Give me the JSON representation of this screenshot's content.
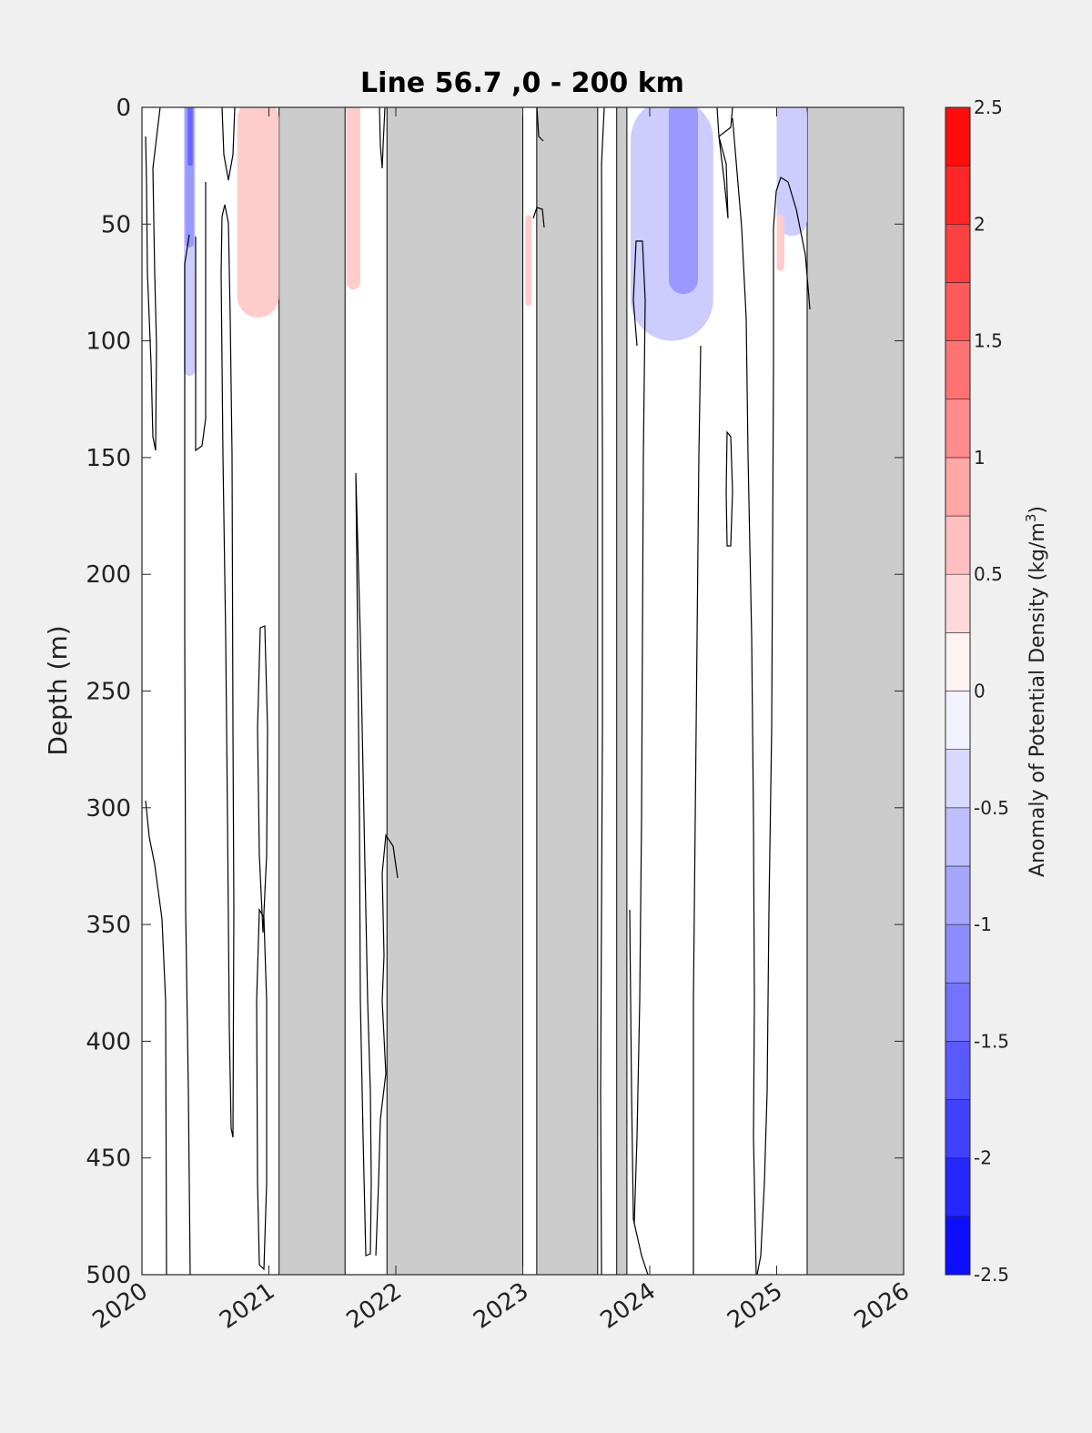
{
  "chart_data": {
    "type": "heatmap",
    "title": "Line 56.7 ,0 - 200 km",
    "ylabel": "Depth (m)",
    "xlabel": "",
    "xlim": [
      2020,
      2026
    ],
    "ylim": [
      0,
      500
    ],
    "y_reversed": true,
    "x_ticks": [
      "2020",
      "2021",
      "2022",
      "2023",
      "2024",
      "2025",
      "2026"
    ],
    "y_ticks": [
      "0",
      "50",
      "100",
      "150",
      "200",
      "250",
      "300",
      "350",
      "400",
      "450",
      "500"
    ],
    "colorbar": {
      "label_main": "Anomaly of Potential Density (kg/m",
      "label_sup": "3",
      "label_end": ")",
      "range": [
        -2.5,
        2.5
      ],
      "step": 0.25,
      "ticks": [
        "2.5",
        "2",
        "1.5",
        "1",
        "0.5",
        "0",
        "-0.5",
        "-1",
        "-1.5",
        "-2",
        "-2.5"
      ],
      "neg_color": "#0000ff",
      "pos_color": "#ff0000",
      "zero_color": "#ffffff"
    },
    "no_data_color": "#cccccc",
    "no_data_periods": [
      [
        2021.08,
        2021.6
      ],
      [
        2021.93,
        2023.0
      ],
      [
        2023.11,
        2023.59
      ],
      [
        2023.74,
        2023.82
      ],
      [
        2025.24,
        2026.0
      ]
    ],
    "anomaly_patches": [
      {
        "x": [
          2020.33,
          2020.42
        ],
        "depth": [
          0,
          115
        ],
        "value": -0.5
      },
      {
        "x": [
          2020.34,
          2020.41
        ],
        "depth": [
          0,
          60
        ],
        "value": -1.0
      },
      {
        "x": [
          2020.36,
          2020.4
        ],
        "depth": [
          0,
          25
        ],
        "value": -1.5
      },
      {
        "x": [
          2020.75,
          2021.08
        ],
        "depth": [
          0,
          90
        ],
        "value": 0.5
      },
      {
        "x": [
          2021.61,
          2021.72
        ],
        "depth": [
          0,
          78
        ],
        "value": 0.5
      },
      {
        "x": [
          2023.02,
          2023.07
        ],
        "depth": [
          50,
          85
        ],
        "value": 0.5
      },
      {
        "x": [
          2023.85,
          2024.5
        ],
        "depth": [
          0,
          100
        ],
        "value": -0.5
      },
      {
        "x": [
          2024.15,
          2024.38
        ],
        "depth": [
          0,
          80
        ],
        "value": -1.0
      },
      {
        "x": [
          2025.0,
          2025.24
        ],
        "depth": [
          0,
          55
        ],
        "value": -0.5
      },
      {
        "x": [
          2025.0,
          2025.06
        ],
        "depth": [
          50,
          70
        ],
        "value": 0.5
      }
    ]
  }
}
